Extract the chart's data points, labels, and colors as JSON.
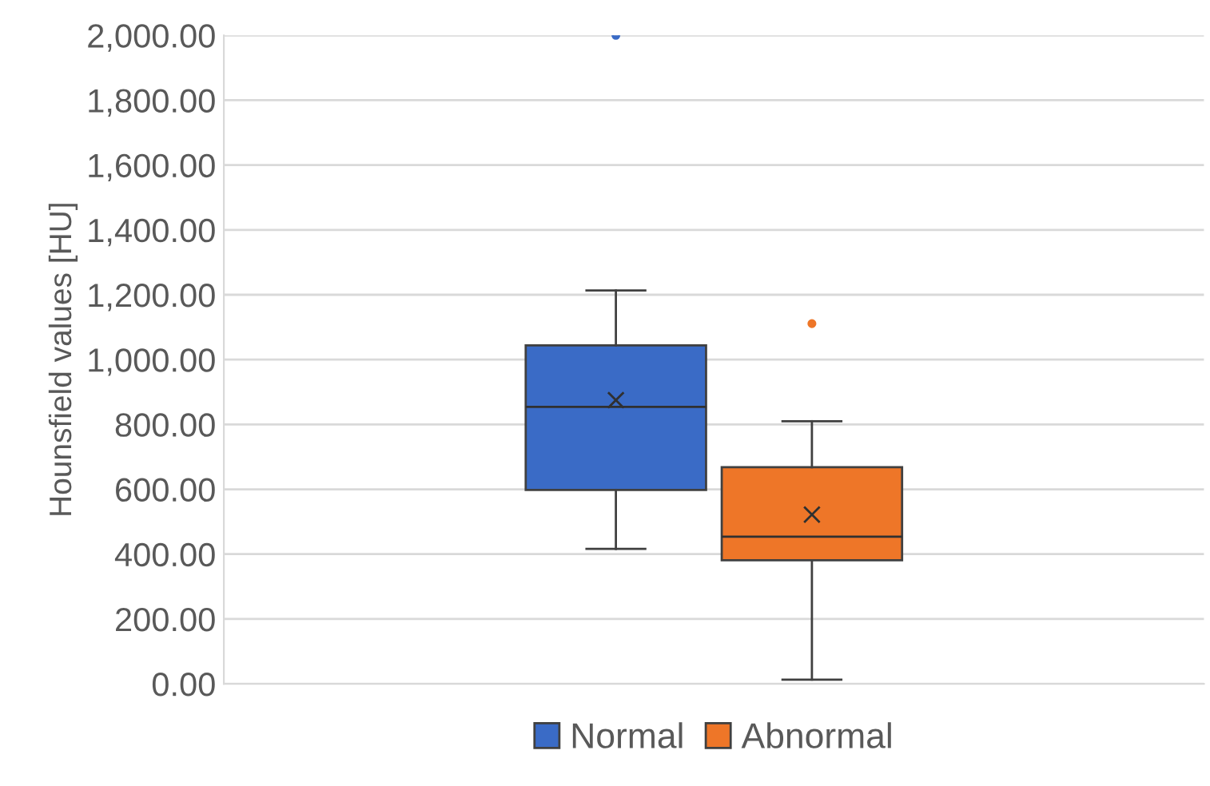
{
  "chart_data": {
    "type": "box",
    "ylabel": "Hounsfield values [HU]",
    "categories": [
      null
    ],
    "series": [
      {
        "name": "Normal",
        "color": "#3a6bc6",
        "boxes": [
          {
            "low": 416,
            "q1": 598,
            "median": 854,
            "q3": 1044,
            "high": 1213,
            "mean": 875,
            "outliers": [
              2000
            ]
          }
        ]
      },
      {
        "name": "Abnormal",
        "color": "#ee7628",
        "boxes": [
          {
            "low": 13,
            "q1": 381,
            "median": 454,
            "q3": 668,
            "high": 810,
            "mean": 522,
            "outliers": [
              1111
            ]
          }
        ]
      }
    ],
    "ylim": [
      0,
      2000
    ],
    "yticks": [
      {
        "value": 0,
        "label": "0.00"
      },
      {
        "value": 200,
        "label": "200.00"
      },
      {
        "value": 400,
        "label": "400.00"
      },
      {
        "value": 600,
        "label": "600.00"
      },
      {
        "value": 800,
        "label": "800.00"
      },
      {
        "value": 1000,
        "label": "1,000.00"
      },
      {
        "value": 1200,
        "label": "1,200.00"
      },
      {
        "value": 1400,
        "label": "1,400.00"
      },
      {
        "value": 1600,
        "label": "1,600.00"
      },
      {
        "value": 1800,
        "label": "1,800.00"
      },
      {
        "value": 2000,
        "label": "2,000.00"
      }
    ],
    "grid": "y",
    "legend": "bottom"
  }
}
